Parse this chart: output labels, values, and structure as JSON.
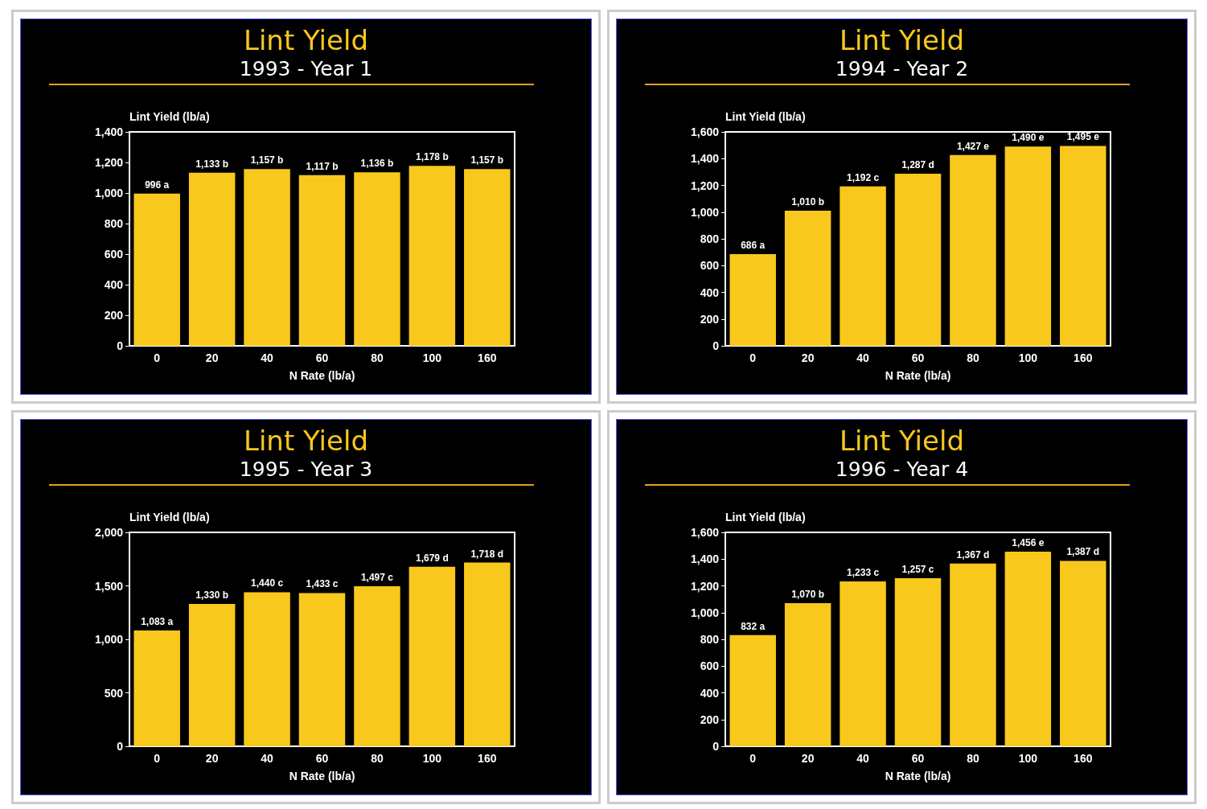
{
  "chart_data": [
    {
      "type": "bar",
      "title": "Lint Yield",
      "subtitle": "1993 - Year 1",
      "ylabel": "Lint Yield (lb/a)",
      "xlabel": "N Rate (lb/a)",
      "categories": [
        "0",
        "20",
        "40",
        "60",
        "80",
        "100",
        "160"
      ],
      "color": "#f8c81c",
      "values": [
        996,
        1133,
        1157,
        1117,
        1136,
        1178,
        1157
      ],
      "value_labels": [
        "996 a",
        "1,133 b",
        "1,157 b",
        "1,117 b",
        "1,136 b",
        "1,178 b",
        "1,157 b"
      ],
      "ylim": [
        0,
        1400
      ],
      "yticks": [
        0,
        200,
        400,
        600,
        800,
        {
          "value": 1000,
          "label": "1,000"
        },
        {
          "value": 1200,
          "label": "1,200"
        },
        {
          "value": 1400,
          "label": "1,400"
        }
      ]
    },
    {
      "type": "bar",
      "title": "Lint Yield",
      "subtitle": "1994 - Year 2",
      "ylabel": "Lint Yield (lb/a)",
      "xlabel": "N Rate (lb/a)",
      "categories": [
        "0",
        "20",
        "40",
        "60",
        "80",
        "100",
        "160"
      ],
      "color": "#f8c81c",
      "values": [
        686,
        1010,
        1192,
        1287,
        1427,
        1490,
        1495
      ],
      "value_labels": [
        "686 a",
        "1,010 b",
        "1,192 c",
        "1,287 d",
        "1,427 e",
        "1,490 e",
        "1,495 e"
      ],
      "ylim": [
        0,
        1600
      ],
      "yticks": [
        0,
        200,
        400,
        600,
        800,
        {
          "value": 1000,
          "label": "1,000"
        },
        {
          "value": 1200,
          "label": "1,200"
        },
        {
          "value": 1400,
          "label": "1,400"
        },
        {
          "value": 1600,
          "label": "1,600"
        }
      ]
    },
    {
      "type": "bar",
      "title": "Lint Yield",
      "subtitle": "1995 - Year 3",
      "ylabel": "Lint Yield (lb/a)",
      "xlabel": "N Rate (lb/a)",
      "categories": [
        "0",
        "20",
        "40",
        "60",
        "80",
        "100",
        "160"
      ],
      "color": "#f8c81c",
      "values": [
        1083,
        1330,
        1440,
        1433,
        1497,
        1679,
        1718
      ],
      "value_labels": [
        "1,083 a",
        "1,330 b",
        "1,440 c",
        "1,433 c",
        "1,497 c",
        "1,679 d",
        "1,718 d"
      ],
      "ylim": [
        0,
        2000
      ],
      "yticks": [
        0,
        500,
        {
          "value": 1000,
          "label": "1,000"
        },
        {
          "value": 1500,
          "label": "1,500"
        },
        {
          "value": 2000,
          "label": "2,000"
        }
      ]
    },
    {
      "type": "bar",
      "title": "Lint Yield",
      "subtitle": "1996 - Year 4",
      "ylabel": "Lint Yield (lb/a)",
      "xlabel": "N Rate (lb/a)",
      "categories": [
        "0",
        "20",
        "40",
        "60",
        "80",
        "100",
        "160"
      ],
      "color": "#f8c81c",
      "values": [
        832,
        1070,
        1233,
        1257,
        1367,
        1456,
        1387
      ],
      "value_labels": [
        "832 a",
        "1,070 b",
        "1,233 c",
        "1,257 c",
        "1,367 d",
        "1,456 e",
        "1,387 d"
      ],
      "ylim": [
        0,
        1600
      ],
      "yticks": [
        0,
        200,
        400,
        600,
        800,
        {
          "value": 1000,
          "label": "1,000"
        },
        {
          "value": 1200,
          "label": "1,200"
        },
        {
          "value": 1400,
          "label": "1,400"
        },
        {
          "value": 1600,
          "label": "1,600"
        }
      ]
    }
  ]
}
